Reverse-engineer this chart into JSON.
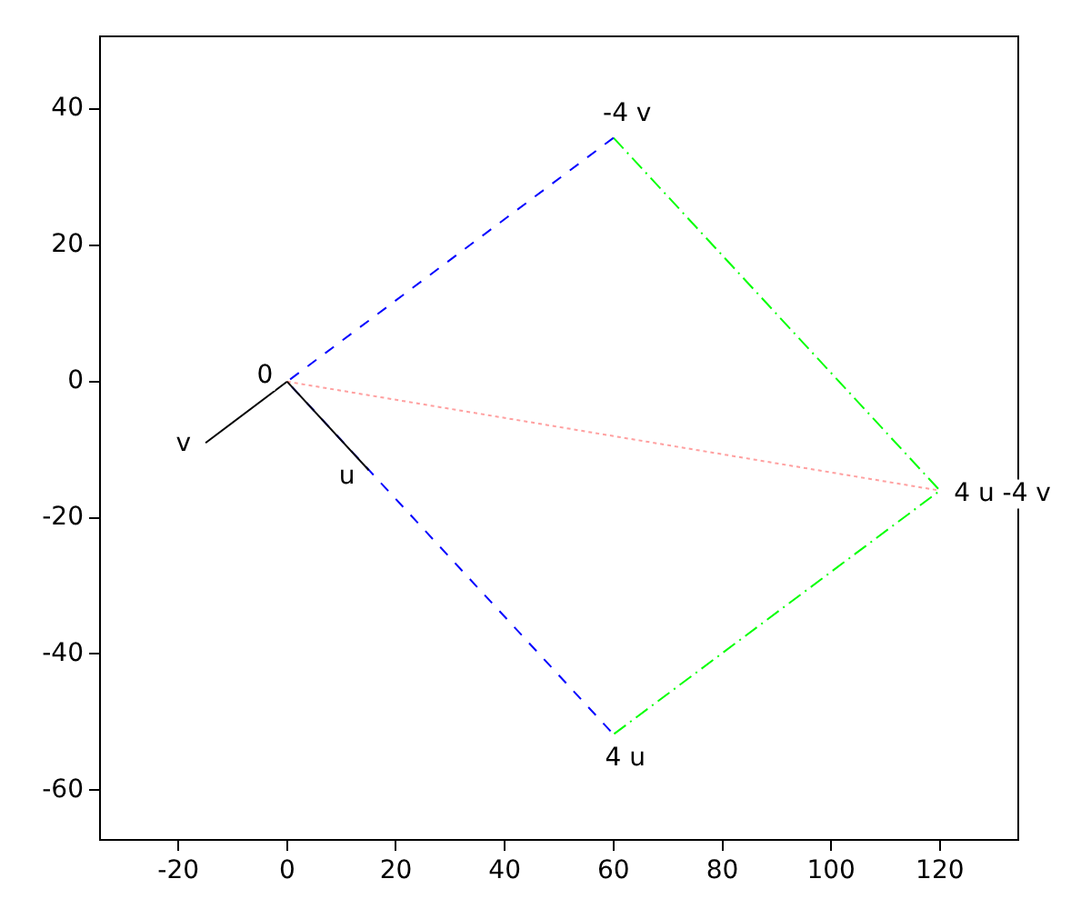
{
  "chart_data": {
    "type": "line",
    "xlim": [
      -34.4,
      134.4
    ],
    "ylim": [
      -67.3,
      50.7
    ],
    "xticks": [
      -20,
      0,
      20,
      40,
      60,
      80,
      100,
      120
    ],
    "yticks": [
      -60,
      -40,
      -20,
      0,
      20,
      40
    ],
    "grid": false,
    "legend": false,
    "marker": "none",
    "series": [
      {
        "color": "#000000",
        "line_style": "solid",
        "x": [
          0,
          15
        ],
        "values": [
          0,
          -13
        ]
      },
      {
        "color": "#000000",
        "line_style": "solid",
        "x": [
          0,
          -15
        ],
        "values": [
          0,
          -9
        ]
      },
      {
        "color": "#0000ff",
        "line_style": "dashed",
        "x": [
          60,
          0,
          60
        ],
        "values": [
          35.8,
          0,
          -51.8
        ]
      },
      {
        "color": "#00ff00",
        "line_style": "dashdot",
        "x": [
          60,
          120,
          60
        ],
        "values": [
          35.8,
          -16,
          -51.8
        ]
      },
      {
        "color": "#ffa0a0",
        "line_style": "dotted",
        "x": [
          0,
          120
        ],
        "values": [
          0,
          -16
        ]
      }
    ],
    "annotations": [
      {
        "text": "0",
        "x": 0,
        "y": 0
      },
      {
        "text": "u",
        "x": 15,
        "y": -13
      },
      {
        "text": "v",
        "x": -15,
        "y": -9
      },
      {
        "text": "-4 v",
        "x": 60,
        "y": 35.8
      },
      {
        "text": "4 u",
        "x": 60,
        "y": -51.8
      },
      {
        "text": "4 u -4 v",
        "x": 120,
        "y": -16
      }
    ]
  }
}
